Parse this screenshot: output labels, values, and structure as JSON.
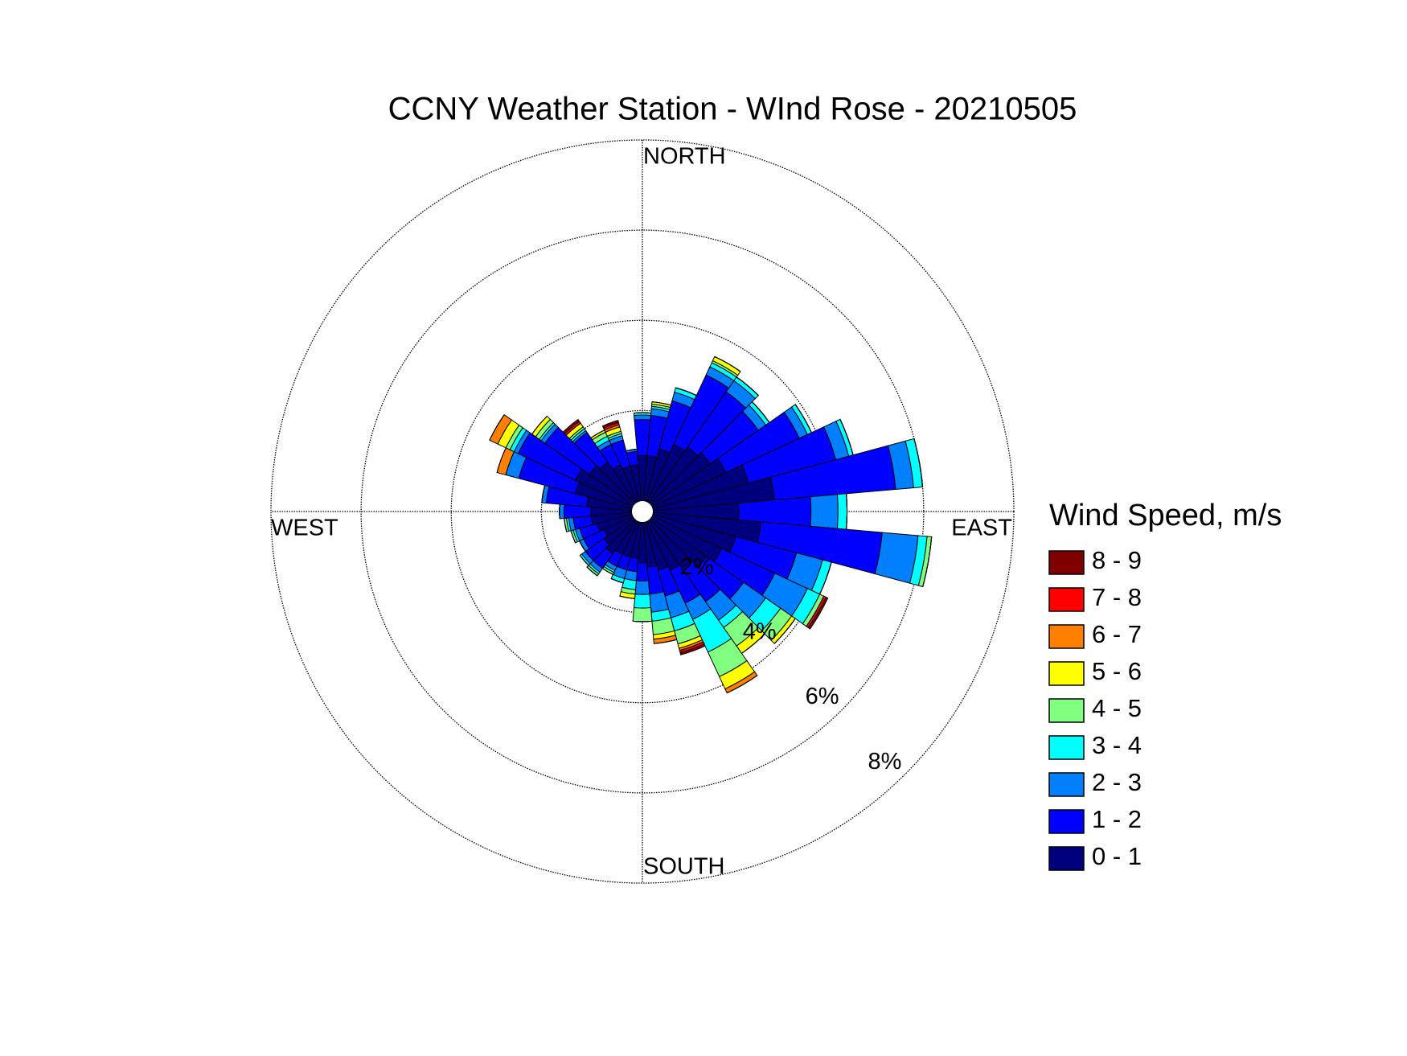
{
  "chart_data": {
    "type": "windrose",
    "title": "CCNY Weather Station - WInd Rose - 20210505",
    "axis_labels": {
      "north": "NORTH",
      "east": "EAST",
      "south": "SOUTH",
      "west": "WEST"
    },
    "legend_title": "Wind Speed, m/s",
    "x": [
      0,
      10,
      20,
      30,
      40,
      50,
      60,
      70,
      80,
      90,
      100,
      110,
      120,
      130,
      140,
      150,
      160,
      170,
      180,
      190,
      200,
      210,
      220,
      230,
      240,
      250,
      260,
      270,
      280,
      290,
      300,
      310,
      320,
      330,
      340,
      350
    ],
    "rlim": [
      0,
      8
    ],
    "rticks": [
      {
        "value": 2,
        "label": "2%"
      },
      {
        "value": 4,
        "label": "4%"
      },
      {
        "value": 6,
        "label": "6%"
      },
      {
        "value": 8,
        "label": "8%"
      }
    ],
    "grid": true,
    "series": [
      {
        "name": "0 - 1",
        "color": "#00007f",
        "values": [
          1.0,
          1.0,
          1.2,
          1.4,
          1.5,
          1.6,
          1.8,
          2.2,
          2.7,
          1.9,
          2.4,
          1.9,
          1.7,
          1.5,
          1.3,
          1.2,
          1.1,
          1.0,
          0.9,
          0.8,
          0.8,
          0.8,
          0.9,
          0.8,
          0.7,
          0.8,
          0.9,
          0.9,
          1.0,
          1.3,
          1.4,
          1.2,
          1.1,
          0.9,
          0.8,
          0.8
        ]
      },
      {
        "name": "1 - 2",
        "color": "#0000ff",
        "values": [
          0.8,
          0.9,
          1.1,
          1.7,
          1.5,
          1.3,
          1.8,
          2.0,
          2.7,
          1.6,
          2.7,
          1.4,
          1.3,
          1.0,
          0.9,
          0.8,
          0.6,
          0.6,
          0.4,
          0.3,
          0.3,
          0.3,
          0.4,
          0.5,
          0.5,
          0.4,
          0.4,
          0.6,
          0.9,
          1.3,
          1.4,
          1.2,
          0.8,
          0.5,
          0.6,
          0.3
        ]
      },
      {
        "name": "2 - 3",
        "color": "#0080ff",
        "values": [
          0.1,
          0.15,
          0.2,
          0.2,
          0.3,
          0.2,
          0.2,
          0.3,
          0.4,
          0.6,
          0.8,
          0.6,
          0.8,
          0.6,
          0.5,
          0.4,
          0.5,
          0.4,
          0.3,
          0.2,
          0.2,
          0.1,
          0.1,
          0.1,
          0.1,
          0.1,
          0.1,
          0.1,
          0.1,
          0.3,
          0.1,
          0.1,
          0.05,
          0.1,
          0.1,
          0.05
        ]
      },
      {
        "name": "3 - 4",
        "color": "#00ffff",
        "values": [
          0.05,
          0.05,
          0.1,
          0.1,
          0.1,
          0.1,
          0.1,
          0.1,
          0.2,
          0.2,
          0.2,
          0.2,
          0.3,
          0.4,
          0.2,
          0.8,
          0.3,
          0.2,
          0.3,
          0.2,
          0.1,
          0.05,
          0.05,
          0.05,
          0,
          0.05,
          0.05,
          0,
          0,
          0,
          0.1,
          0.05,
          0.05,
          0.1,
          0.05,
          0
        ]
      },
      {
        "name": "4 - 5",
        "color": "#80ff80",
        "values": [
          0,
          0.05,
          0,
          0.05,
          0,
          0,
          0,
          0,
          0,
          0,
          0.1,
          0,
          0.1,
          0.3,
          0.5,
          0.6,
          0.3,
          0.3,
          0.3,
          0.1,
          0,
          0.05,
          0.05,
          0,
          0,
          0.05,
          0.05,
          0,
          0,
          0,
          0.1,
          0.1,
          0.05,
          0.1,
          0.05,
          0
        ]
      },
      {
        "name": "5 - 6",
        "color": "#ffff00",
        "values": [
          0,
          0.05,
          0,
          0.1,
          0,
          0,
          0,
          0,
          0,
          0,
          0,
          0,
          0,
          0.1,
          0.2,
          0.3,
          0.1,
          0.1,
          0,
          0.1,
          0,
          0,
          0,
          0,
          0,
          0,
          0,
          0,
          0,
          0,
          0.2,
          0.1,
          0.1,
          0.05,
          0.1,
          0
        ]
      },
      {
        "name": "6 - 7",
        "color": "#ff8000",
        "values": [
          0,
          0,
          0,
          0,
          0,
          0,
          0,
          0,
          0,
          0,
          0,
          0,
          0,
          0,
          0,
          0.1,
          0.05,
          0.1,
          0,
          0,
          0,
          0,
          0,
          0,
          0,
          0,
          0,
          0,
          0,
          0.2,
          0.2,
          0,
          0,
          0,
          0.05,
          0
        ]
      },
      {
        "name": "7 - 8",
        "color": "#ff0000",
        "values": [
          0,
          0,
          0,
          0,
          0,
          0,
          0,
          0,
          0,
          0,
          0,
          0,
          0.05,
          0,
          0,
          0,
          0.05,
          0,
          0,
          0,
          0,
          0,
          0,
          0,
          0,
          0,
          0,
          0,
          0,
          0,
          0,
          0,
          0.05,
          0,
          0.05,
          0
        ]
      },
      {
        "name": "8 - 9",
        "color": "#800000",
        "values": [
          0,
          0,
          0,
          0,
          0,
          0,
          0,
          0,
          0,
          0,
          0,
          0,
          0.05,
          0,
          0,
          0,
          0.05,
          0,
          0,
          0,
          0,
          0,
          0,
          0,
          0,
          0,
          0,
          0,
          0,
          0,
          0,
          0,
          0.05,
          0,
          0.05,
          0
        ]
      }
    ]
  }
}
